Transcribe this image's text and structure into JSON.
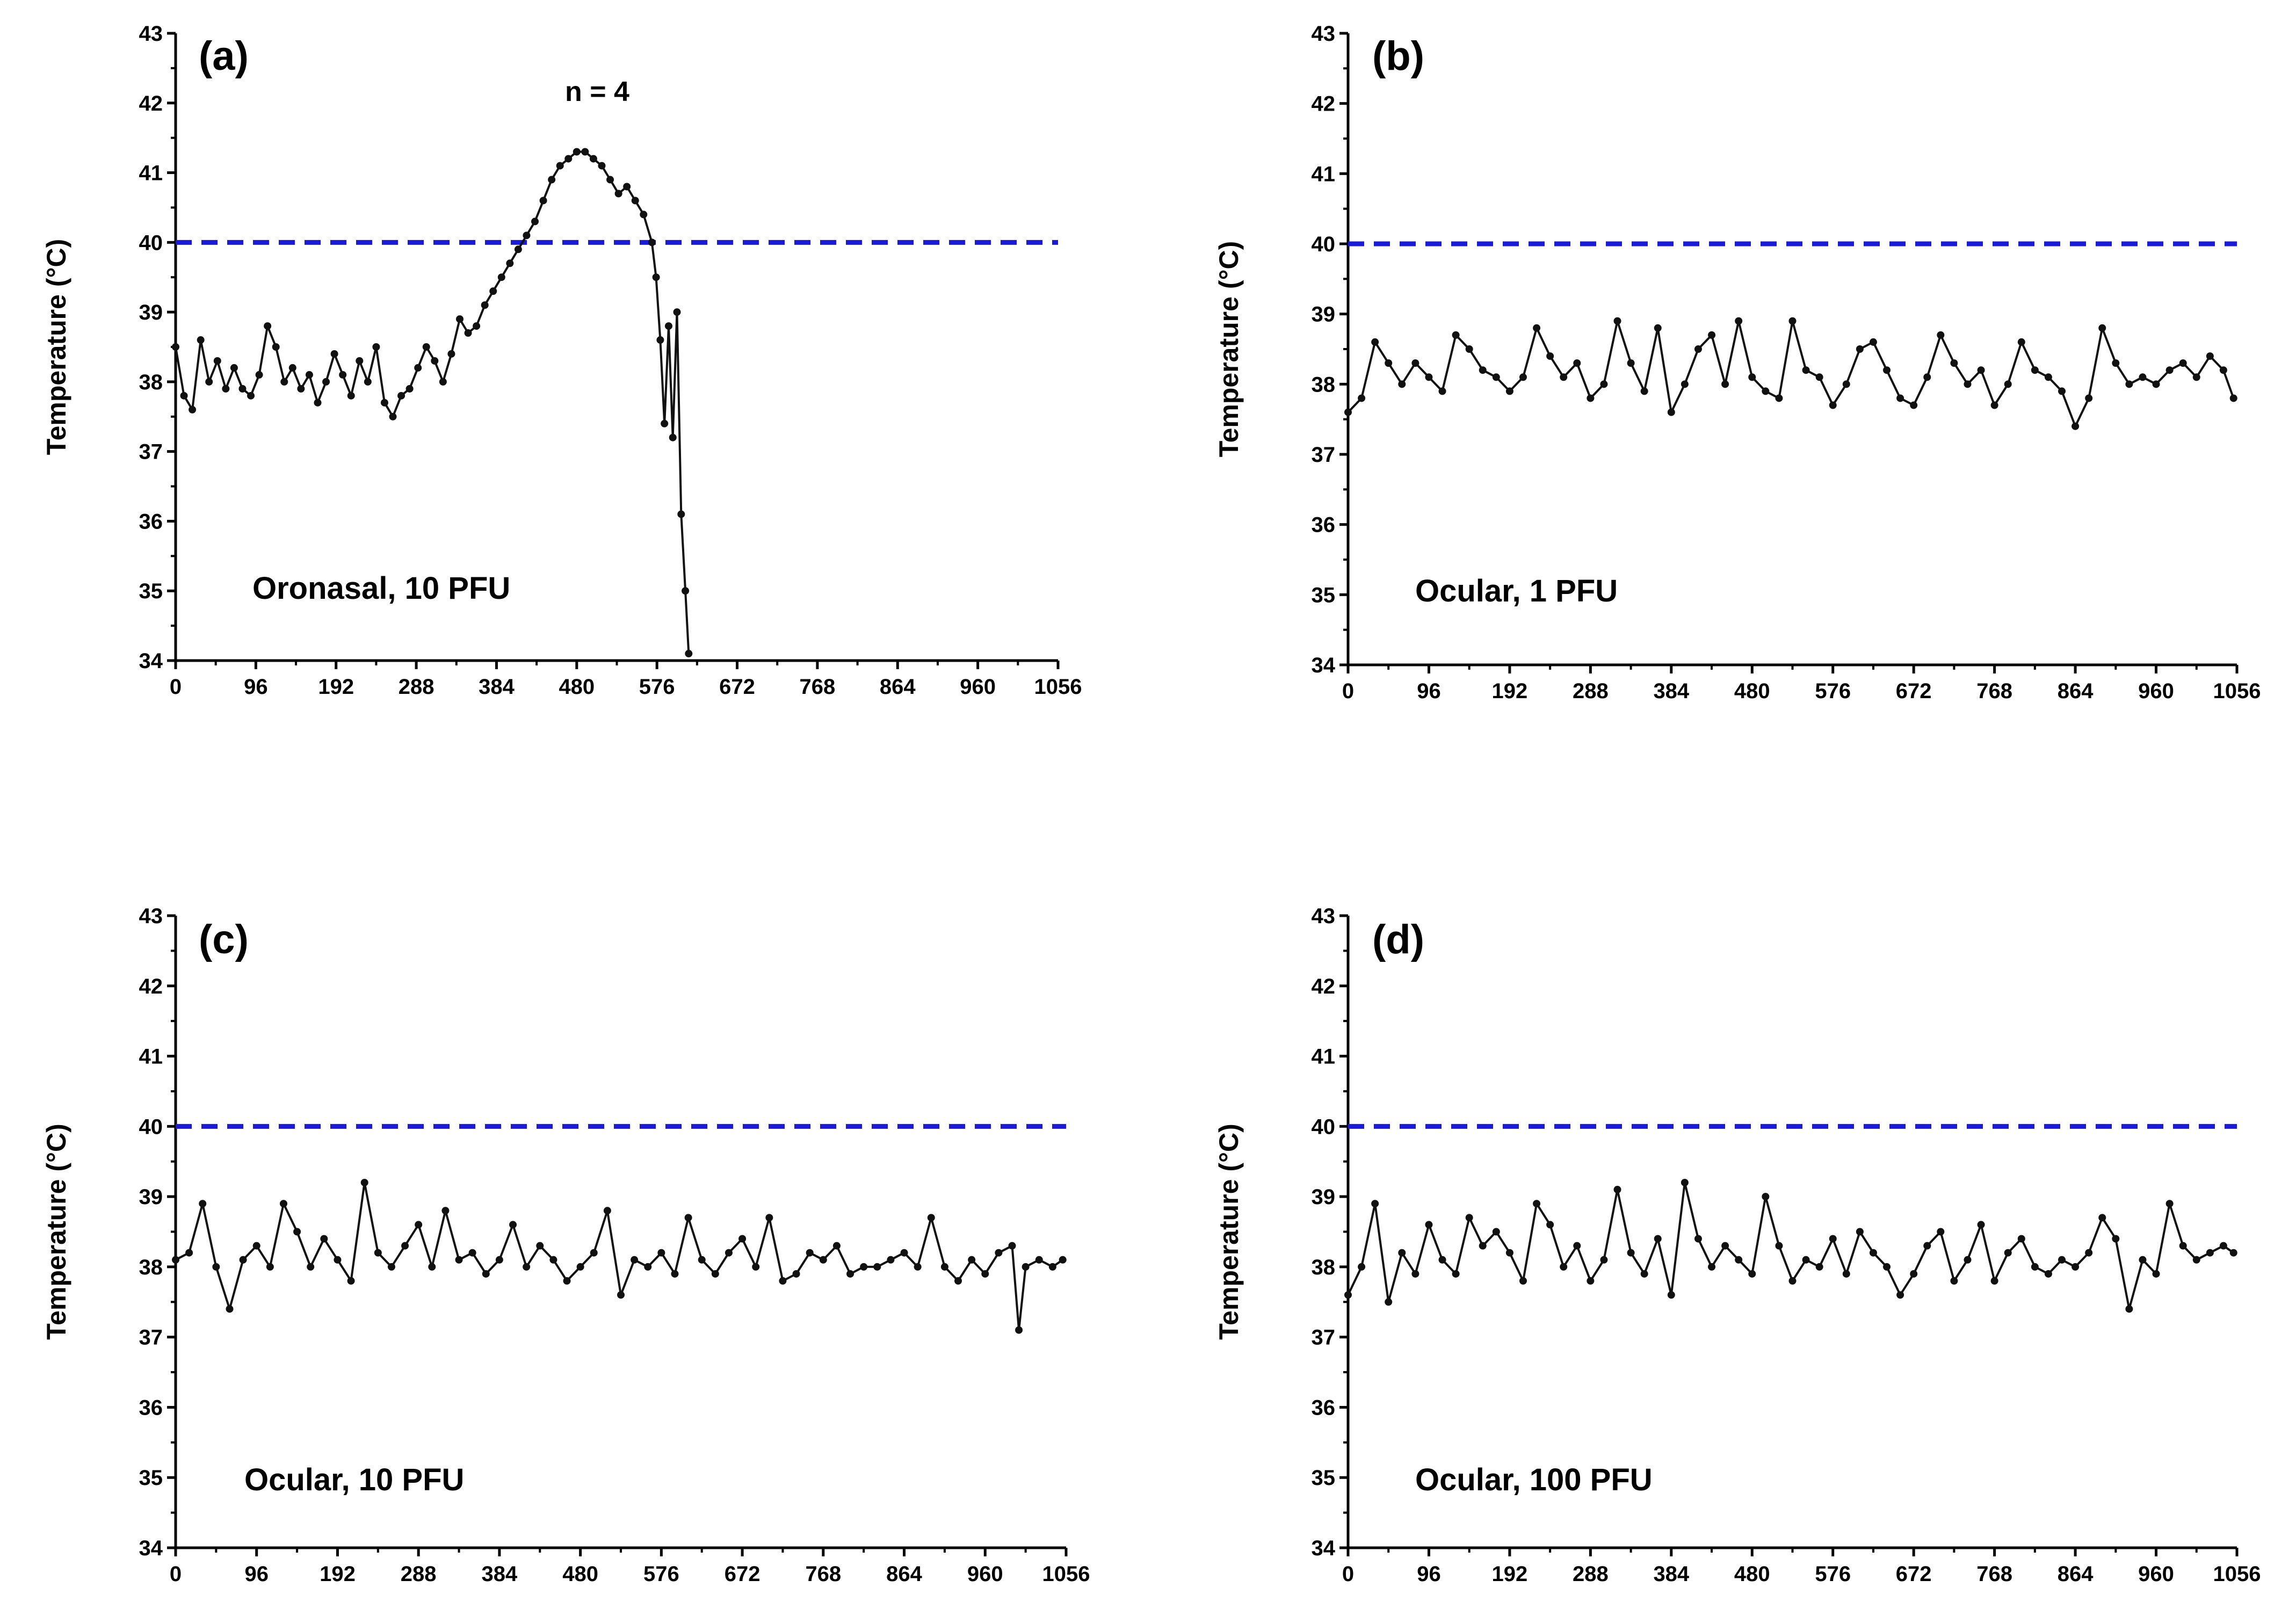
{
  "figure": {
    "threshold": 40,
    "threshold_color": "#1a1adb",
    "line_color": "#111111"
  },
  "chart_data": [
    {
      "type": "line",
      "panel": "(a)",
      "annotation": "Oronasal, 10 PFU",
      "extra_annotation": "n = 4",
      "ylabel": "Temperature (°C)",
      "xlabel": "",
      "ylim": [
        34,
        43
      ],
      "xlim": [
        0,
        1056
      ],
      "yticks": [
        "34",
        "35",
        "36",
        "37",
        "38",
        "39",
        "40",
        "41",
        "42",
        "43"
      ],
      "xticks": [
        "0",
        "96",
        "192",
        "288",
        "384",
        "480",
        "576",
        "672",
        "768",
        "864",
        "960",
        "1056"
      ],
      "reference_line": 40,
      "series": [
        {
          "name": "Oronasal, 10 PFU",
          "x": [
            0,
            10,
            20,
            30,
            40,
            50,
            60,
            70,
            80,
            90,
            100,
            110,
            120,
            130,
            140,
            150,
            160,
            170,
            180,
            190,
            200,
            210,
            220,
            230,
            240,
            250,
            260,
            270,
            280,
            290,
            300,
            310,
            320,
            330,
            340,
            350,
            360,
            370,
            380,
            390,
            400,
            410,
            420,
            430,
            440,
            450,
            460,
            470,
            480,
            490,
            500,
            510,
            520,
            530,
            540,
            550,
            560,
            570,
            575,
            580,
            585,
            590,
            595,
            600,
            605,
            610,
            614
          ],
          "y": [
            38.5,
            37.8,
            37.6,
            38.6,
            38.0,
            38.3,
            37.9,
            38.2,
            37.9,
            37.8,
            38.1,
            38.8,
            38.5,
            38.0,
            38.2,
            37.9,
            38.1,
            37.7,
            38.0,
            38.4,
            38.1,
            37.8,
            38.3,
            38.0,
            38.5,
            37.7,
            37.5,
            37.8,
            37.9,
            38.2,
            38.5,
            38.3,
            38.0,
            38.4,
            38.9,
            38.7,
            38.8,
            39.1,
            39.3,
            39.5,
            39.7,
            39.9,
            40.1,
            40.3,
            40.6,
            40.9,
            41.1,
            41.2,
            41.3,
            41.3,
            41.2,
            41.1,
            40.9,
            40.7,
            40.8,
            40.6,
            40.4,
            40.0,
            39.5,
            38.6,
            37.4,
            38.8,
            37.2,
            39.0,
            36.1,
            35.0,
            34.1
          ]
        }
      ]
    },
    {
      "type": "line",
      "panel": "(b)",
      "annotation": "Ocular, 1 PFU",
      "ylabel": "Temperature (°C)",
      "xlabel": "",
      "ylim": [
        34,
        43
      ],
      "xlim": [
        0,
        1056
      ],
      "yticks": [
        "34",
        "35",
        "36",
        "37",
        "38",
        "39",
        "40",
        "41",
        "42",
        "43"
      ],
      "xticks": [
        "0",
        "96",
        "192",
        "288",
        "384",
        "480",
        "576",
        "672",
        "768",
        "864",
        "960",
        "1056"
      ],
      "reference_line": 40,
      "series": [
        {
          "name": "Ocular, 1 PFU",
          "x": [
            0,
            16,
            32,
            48,
            64,
            80,
            96,
            112,
            128,
            144,
            160,
            176,
            192,
            208,
            224,
            240,
            256,
            272,
            288,
            304,
            320,
            336,
            352,
            368,
            384,
            400,
            416,
            432,
            448,
            464,
            480,
            496,
            512,
            528,
            544,
            560,
            576,
            592,
            608,
            624,
            640,
            656,
            672,
            688,
            704,
            720,
            736,
            752,
            768,
            784,
            800,
            816,
            832,
            848,
            864,
            880,
            896,
            912,
            928,
            944,
            960,
            976,
            992,
            1008,
            1024,
            1040,
            1052
          ],
          "y": [
            37.6,
            37.8,
            38.6,
            38.3,
            38.0,
            38.3,
            38.1,
            37.9,
            38.7,
            38.5,
            38.2,
            38.1,
            37.9,
            38.1,
            38.8,
            38.4,
            38.1,
            38.3,
            37.8,
            38.0,
            38.9,
            38.3,
            37.9,
            38.8,
            37.6,
            38.0,
            38.5,
            38.7,
            38.0,
            38.9,
            38.1,
            37.9,
            37.8,
            38.9,
            38.2,
            38.1,
            37.7,
            38.0,
            38.5,
            38.6,
            38.2,
            37.8,
            37.7,
            38.1,
            38.7,
            38.3,
            38.0,
            38.2,
            37.7,
            38.0,
            38.6,
            38.2,
            38.1,
            37.9,
            37.4,
            37.8,
            38.8,
            38.3,
            38.0,
            38.1,
            38.0,
            38.2,
            38.3,
            38.1,
            38.4,
            38.2,
            37.8
          ]
        }
      ]
    },
    {
      "type": "line",
      "panel": "(c)",
      "annotation": "Ocular, 10 PFU",
      "ylabel": "Temperature (°C)",
      "xlabel": "",
      "ylim": [
        34,
        43
      ],
      "xlim": [
        0,
        1056
      ],
      "yticks": [
        "34",
        "35",
        "36",
        "37",
        "38",
        "39",
        "40",
        "41",
        "42",
        "43"
      ],
      "xticks": [
        "0",
        "96",
        "192",
        "288",
        "384",
        "480",
        "576",
        "672",
        "768",
        "864",
        "960",
        "1056"
      ],
      "reference_line": 40,
      "series": [
        {
          "name": "Ocular, 10 PFU",
          "x": [
            0,
            16,
            32,
            48,
            64,
            80,
            96,
            112,
            128,
            144,
            160,
            176,
            192,
            208,
            224,
            240,
            256,
            272,
            288,
            304,
            320,
            336,
            352,
            368,
            384,
            400,
            416,
            432,
            448,
            464,
            480,
            496,
            512,
            528,
            544,
            560,
            576,
            592,
            608,
            624,
            640,
            656,
            672,
            688,
            704,
            720,
            736,
            752,
            768,
            784,
            800,
            816,
            832,
            848,
            864,
            880,
            896,
            912,
            928,
            944,
            960,
            976,
            992,
            1000,
            1008,
            1024,
            1040,
            1052
          ],
          "y": [
            38.1,
            38.2,
            38.9,
            38.0,
            37.4,
            38.1,
            38.3,
            38.0,
            38.9,
            38.5,
            38.0,
            38.4,
            38.1,
            37.8,
            39.2,
            38.2,
            38.0,
            38.3,
            38.6,
            38.0,
            38.8,
            38.1,
            38.2,
            37.9,
            38.1,
            38.6,
            38.0,
            38.3,
            38.1,
            37.8,
            38.0,
            38.2,
            38.8,
            37.6,
            38.1,
            38.0,
            38.2,
            37.9,
            38.7,
            38.1,
            37.9,
            38.2,
            38.4,
            38.0,
            38.7,
            37.8,
            37.9,
            38.2,
            38.1,
            38.3,
            37.9,
            38.0,
            38.0,
            38.1,
            38.2,
            38.0,
            38.7,
            38.0,
            37.8,
            38.1,
            37.9,
            38.2,
            38.3,
            37.1,
            38.0,
            38.1,
            38.0,
            38.1
          ]
        }
      ]
    },
    {
      "type": "line",
      "panel": "(d)",
      "annotation": "Ocular, 100 PFU",
      "ylabel": "Temperature (°C)",
      "xlabel": "",
      "ylim": [
        34,
        43
      ],
      "xlim": [
        0,
        1056
      ],
      "yticks": [
        "34",
        "35",
        "36",
        "37",
        "38",
        "39",
        "40",
        "41",
        "42",
        "43"
      ],
      "xticks": [
        "0",
        "96",
        "192",
        "288",
        "384",
        "480",
        "576",
        "672",
        "768",
        "864",
        "960",
        "1056"
      ],
      "reference_line": 40,
      "series": [
        {
          "name": "Ocular, 100 PFU",
          "x": [
            0,
            16,
            32,
            48,
            64,
            80,
            96,
            112,
            128,
            144,
            160,
            176,
            192,
            208,
            224,
            240,
            256,
            272,
            288,
            304,
            320,
            336,
            352,
            368,
            384,
            400,
            416,
            432,
            448,
            464,
            480,
            496,
            512,
            528,
            544,
            560,
            576,
            592,
            608,
            624,
            640,
            656,
            672,
            688,
            704,
            720,
            736,
            752,
            768,
            784,
            800,
            816,
            832,
            848,
            864,
            880,
            896,
            912,
            928,
            944,
            960,
            976,
            992,
            1008,
            1024,
            1040,
            1052
          ],
          "y": [
            37.6,
            38.0,
            38.9,
            37.5,
            38.2,
            37.9,
            38.6,
            38.1,
            37.9,
            38.7,
            38.3,
            38.5,
            38.2,
            37.8,
            38.9,
            38.6,
            38.0,
            38.3,
            37.8,
            38.1,
            39.1,
            38.2,
            37.9,
            38.4,
            37.6,
            39.2,
            38.4,
            38.0,
            38.3,
            38.1,
            37.9,
            39.0,
            38.3,
            37.8,
            38.1,
            38.0,
            38.4,
            37.9,
            38.5,
            38.2,
            38.0,
            37.6,
            37.9,
            38.3,
            38.5,
            37.8,
            38.1,
            38.6,
            37.8,
            38.2,
            38.4,
            38.0,
            37.9,
            38.1,
            38.0,
            38.2,
            38.7,
            38.4,
            37.4,
            38.1,
            37.9,
            38.9,
            38.3,
            38.1,
            38.2,
            38.3,
            38.2
          ]
        }
      ]
    }
  ]
}
